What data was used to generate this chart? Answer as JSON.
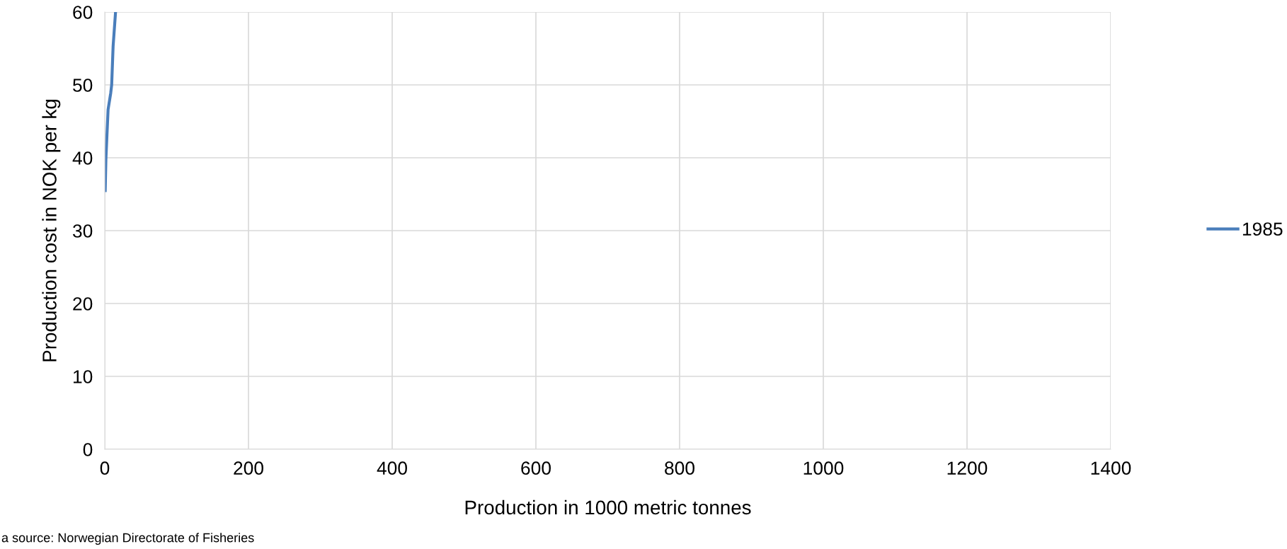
{
  "chart_data": {
    "type": "line",
    "xlabel": "Production in 1000 metric tonnes",
    "ylabel": "Production cost in NOK per kg",
    "series": [
      {
        "name": "1985",
        "color": "#4a7ebb",
        "x": [
          0.6,
          1.6,
          4.6,
          8.3,
          9.6,
          11.6,
          15
        ],
        "values": [
          35.5,
          39.9,
          46.6,
          48.9,
          50,
          55.3,
          60
        ]
      }
    ],
    "xlim": [
      0,
      1400
    ],
    "xticks": [
      0,
      200,
      400,
      600,
      800,
      1000,
      1200,
      1400
    ],
    "ylim": [
      0,
      60
    ],
    "yticks": [
      0,
      10,
      20,
      30,
      40,
      50,
      60
    ],
    "grid": true,
    "legend": "right",
    "marker": "none",
    "line_style": "solid",
    "annotations": [
      "a source: Norwegian Directorate of Fisheries"
    ]
  }
}
